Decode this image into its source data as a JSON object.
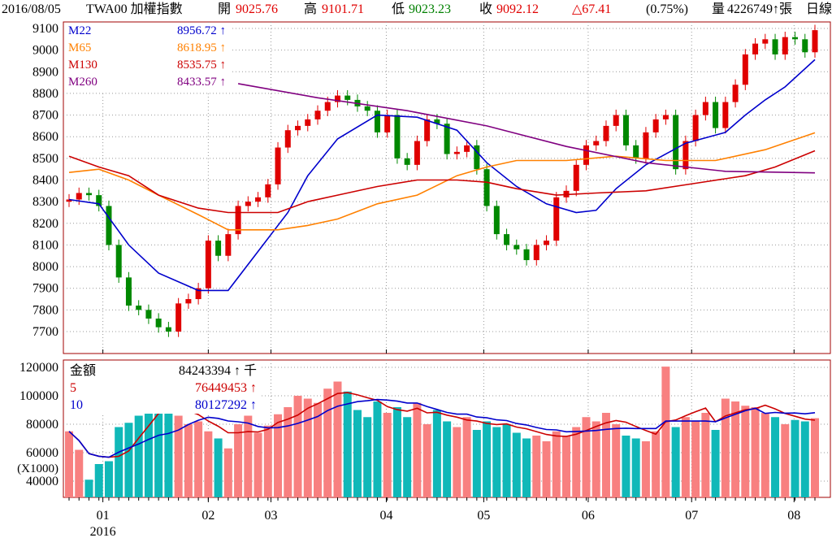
{
  "header": {
    "date": "2016/08/05",
    "symbol": "TWA00 加權指數",
    "open_label": "開",
    "open": "9025.76",
    "high_label": "高",
    "high": "9101.71",
    "low_label": "低",
    "low": "9023.23",
    "close_label": "收",
    "close": "9092.12",
    "change": "△67.41",
    "change_pct": "(0.75%)",
    "volume_label": "量",
    "volume": "4226749↑張",
    "period": "日線"
  },
  "price_legend": [
    {
      "name": "M22",
      "value": "8956.72 ↑",
      "color": "#0000cc"
    },
    {
      "name": "M65",
      "value": "8618.95 ↑",
      "color": "#ff8000"
    },
    {
      "name": "M130",
      "value": "8535.75 ↑",
      "color": "#cc0000"
    },
    {
      "name": "M260",
      "value": "8433.57 ↑",
      "color": "#800080"
    }
  ],
  "volume_legend": [
    {
      "name": "金額",
      "value": "84243394 ↑ 千",
      "color": "#000000"
    },
    {
      "name": "5",
      "value": "76449453 ↑",
      "color": "#cc0000"
    },
    {
      "name": "10",
      "value": "80127292 ↑",
      "color": "#0000cc"
    }
  ],
  "chart_data": {
    "type": "candlestick",
    "price_axis": {
      "ylim": [
        7620,
        9130
      ],
      "ticks": [
        7700,
        7800,
        7900,
        8000,
        8100,
        8200,
        8300,
        8400,
        8500,
        8600,
        8700,
        8800,
        8900,
        9000,
        9100
      ]
    },
    "volume_axis": {
      "ylim": [
        28000,
        124000
      ],
      "ticks": [
        40000,
        60000,
        80000,
        100000,
        120000
      ],
      "unit_label": "(X1000)"
    },
    "x_ticks": [
      {
        "index": 3.4,
        "label": "01",
        "year": "2016"
      },
      {
        "index": 14,
        "label": "02"
      },
      {
        "index": 20.3,
        "label": "03"
      },
      {
        "index": 31.9,
        "label": "04"
      },
      {
        "index": 41.7,
        "label": "05"
      },
      {
        "index": 52.2,
        "label": "06"
      },
      {
        "index": 62.6,
        "label": "07"
      },
      {
        "index": 72.9,
        "label": "08"
      }
    ],
    "closes": [
      8310,
      8340,
      8330,
      8280,
      8100,
      7950,
      7820,
      7800,
      7760,
      7720,
      7700,
      7830,
      7850,
      7900,
      8120,
      8050,
      8150,
      8280,
      8300,
      8320,
      8380,
      8550,
      8630,
      8650,
      8680,
      8720,
      8760,
      8790,
      8770,
      8740,
      8720,
      8620,
      8700,
      8500,
      8470,
      8580,
      8680,
      8660,
      8520,
      8530,
      8560,
      8450,
      8280,
      8150,
      8100,
      8080,
      8030,
      8100,
      8120,
      8320,
      8350,
      8470,
      8560,
      8580,
      8650,
      8700,
      8560,
      8500,
      8620,
      8680,
      8700,
      8450,
      8580,
      8700,
      8760,
      8640,
      8760,
      8840,
      8980,
      9030,
      9050,
      8980,
      9060,
      9050,
      8990,
      9092
    ],
    "volumes": [
      75000,
      62000,
      41000,
      52000,
      54000,
      78000,
      81000,
      86000,
      95000,
      98000,
      88000,
      86000,
      80000,
      82000,
      75000,
      70000,
      63000,
      80000,
      86000,
      74000,
      79000,
      87000,
      92000,
      100000,
      98000,
      95000,
      105000,
      110000,
      103000,
      90000,
      85000,
      96000,
      88000,
      92000,
      85000,
      95000,
      80000,
      90000,
      82000,
      78000,
      85000,
      76000,
      82000,
      78000,
      80000,
      74000,
      70000,
      72000,
      68000,
      75000,
      72000,
      78000,
      85000,
      82000,
      88000,
      80000,
      72000,
      70000,
      68000,
      75000,
      124000,
      78000,
      85000,
      82000,
      88000,
      76000,
      98000,
      96000,
      93000,
      92000,
      88000,
      85000,
      80000,
      83000,
      82000,
      84243
    ],
    "moving_averages": [
      {
        "name": "M22",
        "color": "#0000cc",
        "points": [
          [
            0,
            8310
          ],
          [
            3,
            8290
          ],
          [
            6,
            8100
          ],
          [
            9,
            7970
          ],
          [
            13,
            7890
          ],
          [
            16,
            7890
          ],
          [
            19,
            8070
          ],
          [
            22,
            8250
          ],
          [
            24,
            8420
          ],
          [
            27,
            8590
          ],
          [
            31,
            8700
          ],
          [
            35,
            8690
          ],
          [
            39,
            8630
          ],
          [
            42,
            8480
          ],
          [
            45,
            8370
          ],
          [
            48,
            8290
          ],
          [
            51,
            8250
          ],
          [
            53,
            8260
          ],
          [
            55,
            8360
          ],
          [
            58,
            8470
          ],
          [
            62,
            8570
          ],
          [
            66,
            8620
          ],
          [
            68,
            8700
          ],
          [
            70,
            8770
          ],
          [
            72,
            8830
          ],
          [
            75,
            8956
          ]
        ]
      },
      {
        "name": "M65",
        "color": "#ff8000",
        "points": [
          [
            0,
            8435
          ],
          [
            3,
            8450
          ],
          [
            6,
            8400
          ],
          [
            9,
            8330
          ],
          [
            13,
            8240
          ],
          [
            16,
            8170
          ],
          [
            21,
            8170
          ],
          [
            24,
            8190
          ],
          [
            27,
            8220
          ],
          [
            31,
            8290
          ],
          [
            35,
            8330
          ],
          [
            39,
            8420
          ],
          [
            42,
            8460
          ],
          [
            45,
            8490
          ],
          [
            50,
            8490
          ],
          [
            55,
            8510
          ],
          [
            60,
            8490
          ],
          [
            65,
            8490
          ],
          [
            70,
            8540
          ],
          [
            75,
            8618
          ]
        ]
      },
      {
        "name": "M130",
        "color": "#cc0000",
        "points": [
          [
            0,
            8510
          ],
          [
            3,
            8460
          ],
          [
            6,
            8420
          ],
          [
            9,
            8330
          ],
          [
            13,
            8270
          ],
          [
            16,
            8250
          ],
          [
            21,
            8250
          ],
          [
            24,
            8300
          ],
          [
            27,
            8330
          ],
          [
            31,
            8370
          ],
          [
            35,
            8400
          ],
          [
            39,
            8400
          ],
          [
            42,
            8390
          ],
          [
            45,
            8360
          ],
          [
            49,
            8330
          ],
          [
            53,
            8340
          ],
          [
            58,
            8350
          ],
          [
            63,
            8385
          ],
          [
            68,
            8420
          ],
          [
            71,
            8460
          ],
          [
            75,
            8535
          ]
        ]
      },
      {
        "name": "M260",
        "color": "#800080",
        "points": [
          [
            17,
            8845
          ],
          [
            25,
            8780
          ],
          [
            34,
            8720
          ],
          [
            42,
            8650
          ],
          [
            50,
            8555
          ],
          [
            58,
            8480
          ],
          [
            66,
            8440
          ],
          [
            75,
            8433
          ]
        ]
      }
    ],
    "colors": {
      "up": "#e00000",
      "down": "#008800",
      "vol_up": "#f88080",
      "vol_down": "#10b8b8",
      "vma5": "#cc0000",
      "vma10": "#0000cc",
      "frame": "#a00000"
    }
  }
}
